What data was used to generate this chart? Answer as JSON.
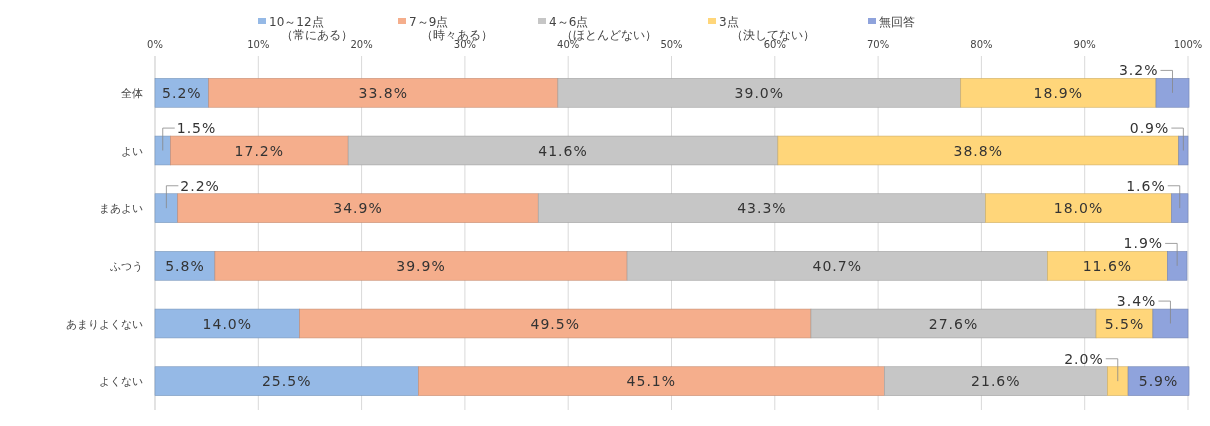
{
  "chart_data": {
    "type": "bar",
    "orientation": "horizontal",
    "stacked": true,
    "categories": [
      "全体",
      "よい",
      "まあよい",
      "ふつう",
      "あまりよくない",
      "よくない"
    ],
    "series": [
      {
        "name": "10～12点（常にある）",
        "color": "#95b9e6",
        "values": [
          5.2,
          1.5,
          2.2,
          5.8,
          14.0,
          25.5
        ],
        "value_labels": [
          "5.2%",
          "1.5%",
          "2.2%",
          "5.8%",
          "14.0%",
          "25.5%"
        ]
      },
      {
        "name": "7～9点（時々ある）",
        "color": "#f5ae8c",
        "values": [
          33.8,
          17.2,
          34.9,
          39.9,
          49.5,
          45.1
        ],
        "value_labels": [
          "33.8%",
          "17.2%",
          "34.9%",
          "39.9%",
          "49.5%",
          "45.1%"
        ]
      },
      {
        "name": "4～6点（ほとんどない）",
        "color": "#c6c6c6",
        "values": [
          39.0,
          41.6,
          43.3,
          40.7,
          27.6,
          21.6
        ],
        "value_labels": [
          "39.0%",
          "41.6%",
          "43.3%",
          "40.7%",
          "27.6%",
          "21.6%"
        ]
      },
      {
        "name": "3点（決してない）",
        "color": "#ffd67a",
        "values": [
          18.9,
          38.8,
          18.0,
          11.6,
          5.5,
          2.0
        ],
        "value_labels": [
          "18.9%",
          "38.8%",
          "18.0%",
          "11.6%",
          "5.5%",
          "2.0%"
        ]
      },
      {
        "name": "無回答",
        "color": "#8fa3dc",
        "values": [
          3.2,
          0.9,
          1.6,
          1.9,
          3.4,
          5.9
        ],
        "value_labels": [
          "3.2%",
          "0.9%",
          "1.6%",
          "1.9%",
          "3.4%",
          "5.9%"
        ]
      }
    ],
    "xlim": [
      0,
      100
    ],
    "xticks": [
      {
        "value": 0,
        "label": "0%"
      },
      {
        "value": 10,
        "label": "10%"
      },
      {
        "value": 20,
        "label": "20%"
      },
      {
        "value": 30,
        "label": "30%"
      },
      {
        "value": 40,
        "label": "40%"
      },
      {
        "value": 50,
        "label": "50%"
      },
      {
        "value": 60,
        "label": "60%"
      },
      {
        "value": 70,
        "label": "70%"
      },
      {
        "value": 80,
        "label": "80%"
      },
      {
        "value": 90,
        "label": "90%"
      },
      {
        "value": 100,
        "label": "100%"
      }
    ],
    "grid": "x",
    "legend": "top"
  }
}
